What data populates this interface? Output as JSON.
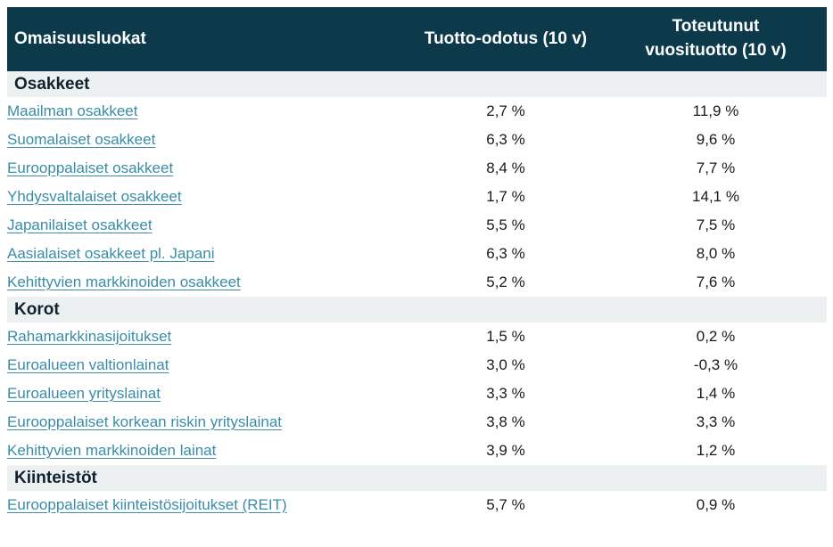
{
  "colors": {
    "header_bg": "#0d3a4b",
    "header_fg": "#ffffff",
    "section_bg": "#edf0f1",
    "section_fg": "#0f2230",
    "link": "#3a8ca8",
    "value_fg": "#1a1a1a"
  },
  "table": {
    "columns": [
      {
        "label": "Omaisuusluokat"
      },
      {
        "label": "Tuotto-odotus (10 v)"
      },
      {
        "label": "Toteutunut vuosituotto (10 v)"
      }
    ],
    "sections": [
      {
        "title": "Osakkeet",
        "rows": [
          {
            "name": "Maailman osakkeet",
            "expected": "2,7 %",
            "realized": "11,9 %"
          },
          {
            "name": "Suomalaiset osakkeet",
            "expected": "6,3 %",
            "realized": "9,6 %"
          },
          {
            "name": "Eurooppalaiset osakkeet",
            "expected": "8,4 %",
            "realized": "7,7 %"
          },
          {
            "name": "Yhdysvaltalaiset osakkeet",
            "expected": "1,7 %",
            "realized": "14,1 %"
          },
          {
            "name": "Japanilaiset osakkeet",
            "expected": "5,5 %",
            "realized": "7,5 %"
          },
          {
            "name": "Aasialaiset osakkeet pl. Japani",
            "expected": "6,3 %",
            "realized": "8,0 %"
          },
          {
            "name": "Kehittyvien markkinoiden osakkeet",
            "expected": "5,2 %",
            "realized": "7,6 %"
          }
        ]
      },
      {
        "title": "Korot",
        "rows": [
          {
            "name": "Rahamarkkinasijoitukset",
            "expected": "1,5 %",
            "realized": "0,2 %"
          },
          {
            "name": "Euroalueen valtionlainat",
            "expected": "3,0 %",
            "realized": "-0,3 %"
          },
          {
            "name": "Euroalueen yrityslainat",
            "expected": "3,3 %",
            "realized": "1,4 %"
          },
          {
            "name": "Eurooppalaiset korkean riskin yrityslainat",
            "expected": "3,8 %",
            "realized": "3,3 %"
          },
          {
            "name": "Kehittyvien markkinoiden lainat",
            "expected": "3,9 %",
            "realized": "1,2 %"
          }
        ]
      },
      {
        "title": "Kiinteistöt",
        "rows": [
          {
            "name": "Eurooppalaiset kiinteistösijoitukset (REIT)",
            "expected": "5,7 %",
            "realized": "0,9 %"
          }
        ]
      }
    ]
  },
  "chart_data": {
    "type": "table",
    "title": "",
    "columns": [
      "Omaisuusluokat",
      "Tuotto-odotus (10 v)",
      "Toteutunut vuosituotto (10 v)"
    ],
    "sections": [
      {
        "title": "Osakkeet",
        "rows": [
          {
            "asset_class": "Maailman osakkeet",
            "expected_return_pct": 2.7,
            "realized_return_pct": 11.9
          },
          {
            "asset_class": "Suomalaiset osakkeet",
            "expected_return_pct": 6.3,
            "realized_return_pct": 9.6
          },
          {
            "asset_class": "Eurooppalaiset osakkeet",
            "expected_return_pct": 8.4,
            "realized_return_pct": 7.7
          },
          {
            "asset_class": "Yhdysvaltalaiset osakkeet",
            "expected_return_pct": 1.7,
            "realized_return_pct": 14.1
          },
          {
            "asset_class": "Japanilaiset osakkeet",
            "expected_return_pct": 5.5,
            "realized_return_pct": 7.5
          },
          {
            "asset_class": "Aasialaiset osakkeet pl. Japani",
            "expected_return_pct": 6.3,
            "realized_return_pct": 8.0
          },
          {
            "asset_class": "Kehittyvien markkinoiden osakkeet",
            "expected_return_pct": 5.2,
            "realized_return_pct": 7.6
          }
        ]
      },
      {
        "title": "Korot",
        "rows": [
          {
            "asset_class": "Rahamarkkinasijoitukset",
            "expected_return_pct": 1.5,
            "realized_return_pct": 0.2
          },
          {
            "asset_class": "Euroalueen valtionlainat",
            "expected_return_pct": 3.0,
            "realized_return_pct": -0.3
          },
          {
            "asset_class": "Euroalueen yrityslainat",
            "expected_return_pct": 3.3,
            "realized_return_pct": 1.4
          },
          {
            "asset_class": "Eurooppalaiset korkean riskin yrityslainat",
            "expected_return_pct": 3.8,
            "realized_return_pct": 3.3
          },
          {
            "asset_class": "Kehittyvien markkinoiden lainat",
            "expected_return_pct": 3.9,
            "realized_return_pct": 1.2
          }
        ]
      },
      {
        "title": "Kiinteistöt",
        "rows": [
          {
            "asset_class": "Eurooppalaiset kiinteistösijoitukset (REIT)",
            "expected_return_pct": 5.7,
            "realized_return_pct": 0.9
          }
        ]
      }
    ]
  }
}
